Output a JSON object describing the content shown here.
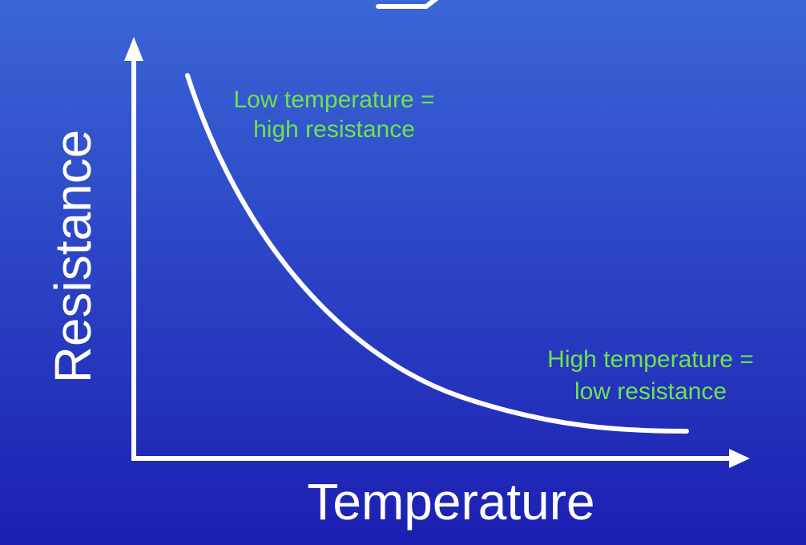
{
  "colors": {
    "background_top": "#3a66d6",
    "background_bottom": "#1c1fb2",
    "curve": "#ffffff",
    "axes": "#ffffff",
    "annotation": "#6fe34a"
  },
  "diagram": {
    "x_axis_label": "Temperature",
    "y_axis_label": "Resistance",
    "curve_shape": "decreasing exponential",
    "annotations": {
      "low_temp_line1": "Low temperature =",
      "low_temp_line2": "high resistance",
      "high_temp_line1": "High temperature =",
      "high_temp_line2": "low resistance"
    }
  }
}
